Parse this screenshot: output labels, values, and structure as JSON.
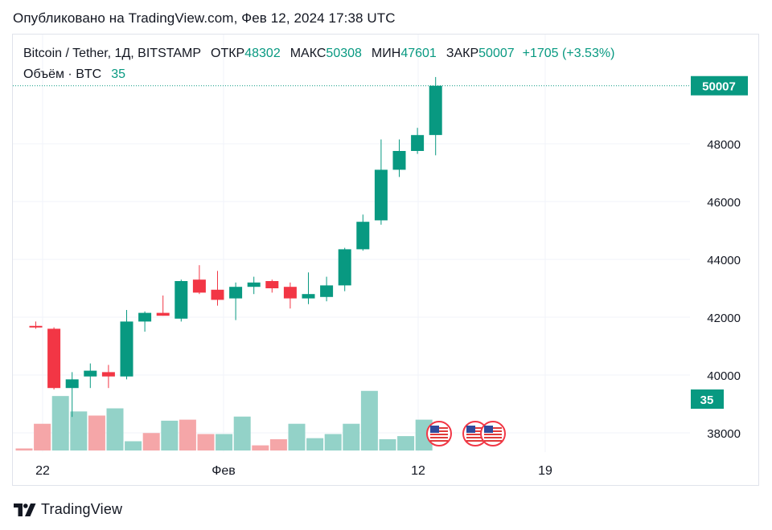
{
  "header": {
    "published": "Опубликовано на TradingView.com, Фев 12, 2024 17:38 UTC"
  },
  "legend": {
    "symbol": "Bitcoin / Tether, 1Д, BITSTAMP",
    "open_label": "ОТКР",
    "open": "48302",
    "high_label": "МАКС",
    "high": "50308",
    "low_label": "МИН",
    "low": "47601",
    "close_label": "ЗАКР",
    "close": "50007",
    "change": "+1705 (+3.53%)",
    "volume_label": "Объём · BTC",
    "volume_value": "35"
  },
  "footer": {
    "brand": "TradingView"
  },
  "colors": {
    "up": "#089981",
    "down": "#f23645",
    "vol_up": "#93d2c8",
    "vol_down": "#f5a6a8",
    "grid": "#f0f3fa",
    "axis_text": "#131722"
  },
  "chart_data": {
    "type": "candlestick",
    "title": "Bitcoin / Tether, 1Д, BITSTAMP",
    "interval": "1D",
    "y_axis": {
      "ticks": [
        38000,
        40000,
        42000,
        44000,
        46000,
        48000
      ],
      "range": [
        37500,
        50700
      ]
    },
    "x_axis": {
      "labels": [
        "22",
        "Фев",
        "12",
        "19"
      ]
    },
    "last_price_label": "50007",
    "volume_label": "35",
    "candles": [
      {
        "o": 41700,
        "h": 41850,
        "l": 41600,
        "c": 41650
      },
      {
        "o": 41600,
        "h": 41650,
        "l": 39500,
        "c": 39550
      },
      {
        "o": 39550,
        "h": 40100,
        "l": 38550,
        "c": 39850
      },
      {
        "o": 39950,
        "h": 40400,
        "l": 39550,
        "c": 40150
      },
      {
        "o": 40100,
        "h": 40350,
        "l": 39550,
        "c": 39950
      },
      {
        "o": 39950,
        "h": 42250,
        "l": 39850,
        "c": 41850
      },
      {
        "o": 41850,
        "h": 42200,
        "l": 41500,
        "c": 42150
      },
      {
        "o": 42150,
        "h": 42750,
        "l": 42050,
        "c": 42050
      },
      {
        "o": 41950,
        "h": 43300,
        "l": 41850,
        "c": 43250
      },
      {
        "o": 43300,
        "h": 43800,
        "l": 42800,
        "c": 42850
      },
      {
        "o": 42950,
        "h": 43600,
        "l": 42400,
        "c": 42600
      },
      {
        "o": 42650,
        "h": 43200,
        "l": 41900,
        "c": 43050
      },
      {
        "o": 43050,
        "h": 43400,
        "l": 42800,
        "c": 43200
      },
      {
        "o": 43250,
        "h": 43300,
        "l": 42850,
        "c": 43000
      },
      {
        "o": 43050,
        "h": 43200,
        "l": 42300,
        "c": 42650
      },
      {
        "o": 42650,
        "h": 43550,
        "l": 42450,
        "c": 42800
      },
      {
        "o": 42700,
        "h": 43400,
        "l": 42550,
        "c": 43100
      },
      {
        "o": 43100,
        "h": 44400,
        "l": 42900,
        "c": 44350
      },
      {
        "o": 44350,
        "h": 45550,
        "l": 44300,
        "c": 45300
      },
      {
        "o": 45350,
        "h": 48150,
        "l": 45200,
        "c": 47100
      },
      {
        "o": 47100,
        "h": 48150,
        "l": 46850,
        "c": 47750
      },
      {
        "o": 47750,
        "h": 48550,
        "l": 47650,
        "c": 48300
      },
      {
        "o": 48302,
        "h": 50308,
        "l": 47601,
        "c": 50007
      }
    ],
    "volume_rel": [
      0.02,
      0.26,
      0.53,
      0.38,
      0.34,
      0.41,
      0.09,
      0.17,
      0.29,
      0.3,
      0.16,
      0.16,
      0.33,
      0.05,
      0.11,
      0.26,
      0.12,
      0.16,
      0.26,
      0.58,
      0.11,
      0.14,
      0.3
    ]
  }
}
